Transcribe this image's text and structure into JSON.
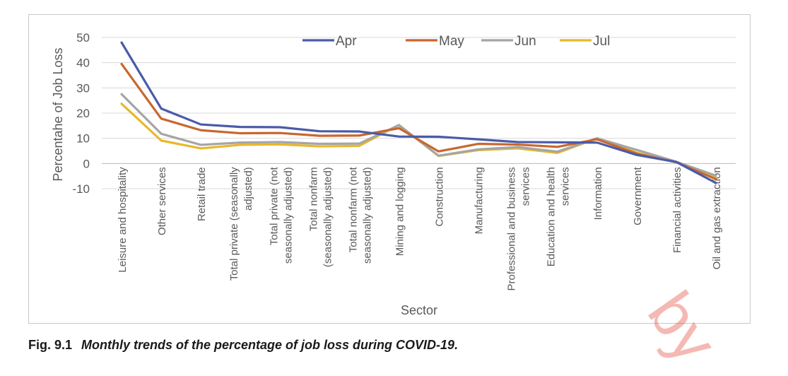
{
  "chart_data": {
    "type": "line",
    "xlabel": "Sector",
    "ylabel": "Percentahe of Job Loss",
    "ylim": [
      -10,
      50
    ],
    "yticks": [
      -10,
      0,
      10,
      20,
      30,
      40,
      50
    ],
    "grid": true,
    "legend": "top-center",
    "categories": [
      "Leisure and hospitality",
      "Other services",
      "Retail trade",
      "Total private (seasonally adjusted)",
      "Total private (not seasonally adjusted)",
      "Total nonfarm (seasonally adjusted)",
      "Total nonfarm (not seasonally adjusted)",
      "Mining and logging",
      "Construction",
      "Manufacturing",
      "Professional and business services",
      "Education and health services",
      "Information",
      "Government",
      "Financial activities",
      "Oil and gas extraction"
    ],
    "category_lines": [
      [
        "Leisure and hospitality"
      ],
      [
        "Other services"
      ],
      [
        "Retail trade"
      ],
      [
        "Total private (seasonally",
        "adjusted)"
      ],
      [
        "Total private (not",
        "seasonally adjusted)"
      ],
      [
        "Total nonfarm",
        "(seasonally adjusted)"
      ],
      [
        "Total nonfarm (not",
        "seasonally adjusted)"
      ],
      [
        "Mining and logging"
      ],
      [
        "Construction"
      ],
      [
        "Manufacturing"
      ],
      [
        "Professional and business",
        "services"
      ],
      [
        "Education and health",
        "services"
      ],
      [
        "Information"
      ],
      [
        "Government"
      ],
      [
        "Financial activities"
      ],
      [
        "Oil and gas extraction"
      ]
    ],
    "series": [
      {
        "name": "Apr",
        "color": "#4a5ba8",
        "values": [
          48,
          21.8,
          15.5,
          14.5,
          14.4,
          12.8,
          12.7,
          10.7,
          10.6,
          9.6,
          8.5,
          8.4,
          8.3,
          3.4,
          0.6,
          -7.7
        ]
      },
      {
        "name": "May",
        "color": "#c8672e",
        "values": [
          39.5,
          17.8,
          13.2,
          12.0,
          12.1,
          11.0,
          11.1,
          14.0,
          4.8,
          7.8,
          7.5,
          6.6,
          9.6,
          3.9,
          0.5,
          -6.2
        ]
      },
      {
        "name": "Jun",
        "color": "#a5a5a5",
        "values": [
          27.5,
          11.8,
          7.4,
          8.3,
          8.5,
          7.8,
          7.9,
          15.2,
          3.1,
          5.6,
          6.5,
          4.7,
          10.0,
          5.4,
          0.7,
          -4.8
        ]
      },
      {
        "name": "Jul",
        "color": "#e8b82a",
        "values": [
          23.7,
          9.1,
          6.0,
          7.4,
          7.6,
          6.8,
          7.0,
          15.3,
          3.0,
          5.3,
          6.0,
          4.2,
          10.0,
          4.3,
          0.6,
          -5.7
        ]
      }
    ]
  },
  "caption": {
    "number": "Fig. 9.1",
    "text": "Monthly trends of the percentage of job loss during COVID-19."
  },
  "watermark": "by"
}
